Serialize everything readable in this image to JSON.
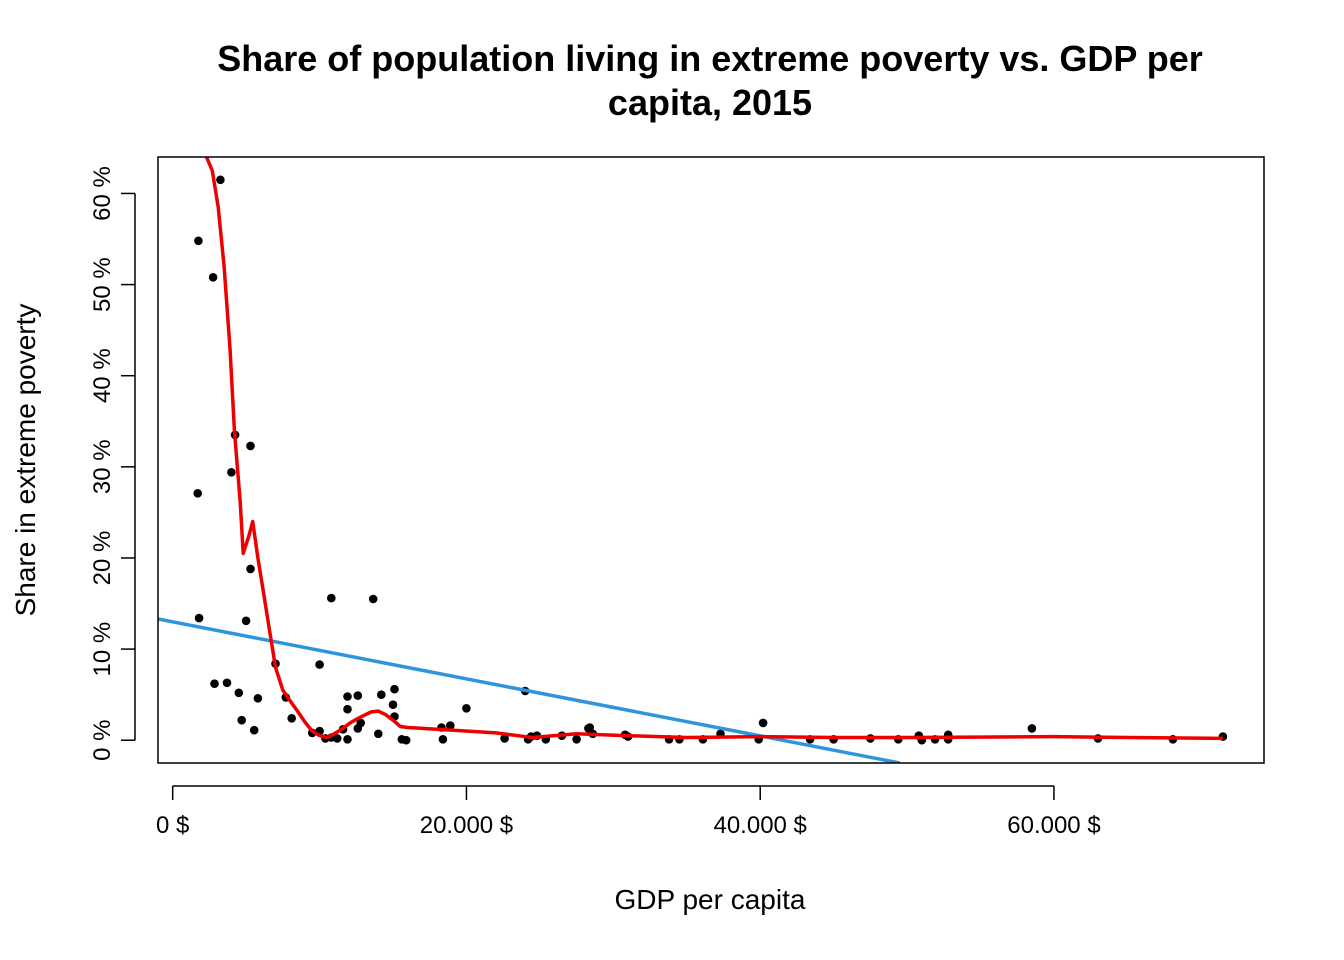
{
  "chart_data": {
    "type": "scatter",
    "title_line1": "Share of population living in extreme poverty vs. GDP per",
    "title_line2": "capita, 2015",
    "xlabel": "GDP per capita",
    "ylabel": "Share in extreme poverty",
    "xlim": [
      -1000,
      74300
    ],
    "ylim": [
      -2.5,
      64
    ],
    "x_ticks": [
      {
        "value": 0,
        "label": "0 $"
      },
      {
        "value": 20000,
        "label": "20.000 $"
      },
      {
        "value": 40000,
        "label": "40.000 $"
      },
      {
        "value": 60000,
        "label": "60.000 $"
      }
    ],
    "y_ticks": [
      {
        "value": 0,
        "label": "0 %"
      },
      {
        "value": 10,
        "label": "10 %"
      },
      {
        "value": 20,
        "label": "20 %"
      },
      {
        "value": 30,
        "label": "30 %"
      },
      {
        "value": 40,
        "label": "40 %"
      },
      {
        "value": 50,
        "label": "50 %"
      },
      {
        "value": 60,
        "label": "60 %"
      }
    ],
    "grid": false,
    "points": [
      [
        3250,
        61.5
      ],
      [
        1750,
        54.8
      ],
      [
        2750,
        50.8
      ],
      [
        4250,
        33.5
      ],
      [
        5300,
        32.3
      ],
      [
        4000,
        29.4
      ],
      [
        1700,
        27.1
      ],
      [
        5300,
        18.8
      ],
      [
        10800,
        15.6
      ],
      [
        13650,
        15.5
      ],
      [
        1800,
        13.4
      ],
      [
        5000,
        13.1
      ],
      [
        7000,
        8.4
      ],
      [
        10000,
        8.3
      ],
      [
        2850,
        6.2
      ],
      [
        3700,
        6.3
      ],
      [
        4500,
        5.2
      ],
      [
        5800,
        4.6
      ],
      [
        7700,
        4.7
      ],
      [
        11900,
        4.8
      ],
      [
        12600,
        4.9
      ],
      [
        14200,
        5.0
      ],
      [
        15100,
        5.6
      ],
      [
        24000,
        5.4
      ],
      [
        4700,
        2.2
      ],
      [
        5550,
        1.1
      ],
      [
        8100,
        2.4
      ],
      [
        11900,
        3.4
      ],
      [
        12600,
        1.3
      ],
      [
        12800,
        1.9
      ],
      [
        9500,
        0.8
      ],
      [
        10000,
        1.0
      ],
      [
        10400,
        0.2
      ],
      [
        10800,
        0.3
      ],
      [
        11200,
        0.2
      ],
      [
        11600,
        1.2
      ],
      [
        11900,
        0.1
      ],
      [
        14000,
        0.7
      ],
      [
        15100,
        2.6
      ],
      [
        15000,
        3.9
      ],
      [
        15600,
        0.1
      ],
      [
        15900,
        0.0
      ],
      [
        18300,
        1.4
      ],
      [
        18400,
        0.1
      ],
      [
        18900,
        1.6
      ],
      [
        20000,
        3.5
      ],
      [
        22600,
        0.2
      ],
      [
        24200,
        0.1
      ],
      [
        24400,
        0.4
      ],
      [
        24800,
        0.5
      ],
      [
        25400,
        0.1
      ],
      [
        26500,
        0.5
      ],
      [
        27500,
        0.1
      ],
      [
        28300,
        1.3
      ],
      [
        28400,
        1.4
      ],
      [
        28600,
        0.7
      ],
      [
        30800,
        0.6
      ],
      [
        31000,
        0.4
      ],
      [
        33800,
        0.1
      ],
      [
        34500,
        0.1
      ],
      [
        36100,
        0.1
      ],
      [
        37300,
        0.7
      ],
      [
        39900,
        0.1
      ],
      [
        40200,
        1.9
      ],
      [
        43400,
        0.1
      ],
      [
        45000,
        0.1
      ],
      [
        47500,
        0.2
      ],
      [
        49400,
        0.1
      ],
      [
        50800,
        0.5
      ],
      [
        51000,
        0.0
      ],
      [
        51900,
        0.1
      ],
      [
        52800,
        0.6
      ],
      [
        52800,
        0.1
      ],
      [
        58500,
        1.3
      ],
      [
        63000,
        0.2
      ],
      [
        68100,
        0.1
      ],
      [
        71500,
        0.4
      ]
    ],
    "linear_fit": {
      "color": "#2e94de",
      "points": [
        [
          -1000,
          13.3
        ],
        [
          49500,
          -2.5
        ]
      ]
    },
    "smooth_fit": {
      "color": "#ee0000",
      "points": [
        [
          2300,
          64
        ],
        [
          2700,
          62.5
        ],
        [
          3100,
          58.5
        ],
        [
          3500,
          52
        ],
        [
          3900,
          43
        ],
        [
          4200,
          34
        ],
        [
          4600,
          26
        ],
        [
          4800,
          20.5
        ],
        [
          5200,
          22.5
        ],
        [
          5450,
          24
        ],
        [
          5800,
          20
        ],
        [
          6200,
          16
        ],
        [
          6600,
          12
        ],
        [
          7000,
          8
        ],
        [
          7500,
          5.5
        ],
        [
          8000,
          4.3
        ],
        [
          8500,
          3.2
        ],
        [
          9000,
          2
        ],
        [
          9500,
          1
        ],
        [
          10000,
          0.5
        ],
        [
          10500,
          0.3
        ],
        [
          11000,
          0.7
        ],
        [
          11500,
          1.2
        ],
        [
          12000,
          1.8
        ],
        [
          12500,
          2.3
        ],
        [
          13000,
          2.7
        ],
        [
          13500,
          3.1
        ],
        [
          14000,
          3.2
        ],
        [
          14500,
          2.8
        ],
        [
          15000,
          2.2
        ],
        [
          15500,
          1.5
        ],
        [
          16000,
          1.4
        ],
        [
          18000,
          1.2
        ],
        [
          22000,
          0.8
        ],
        [
          23500,
          0.5
        ],
        [
          24500,
          0.3
        ],
        [
          27500,
          0.7
        ],
        [
          31000,
          0.5
        ],
        [
          35000,
          0.3
        ],
        [
          40000,
          0.4
        ],
        [
          45000,
          0.3
        ],
        [
          50000,
          0.3
        ],
        [
          60000,
          0.4
        ],
        [
          65000,
          0.3
        ],
        [
          71500,
          0.2
        ]
      ]
    },
    "point_color": "#000000"
  }
}
